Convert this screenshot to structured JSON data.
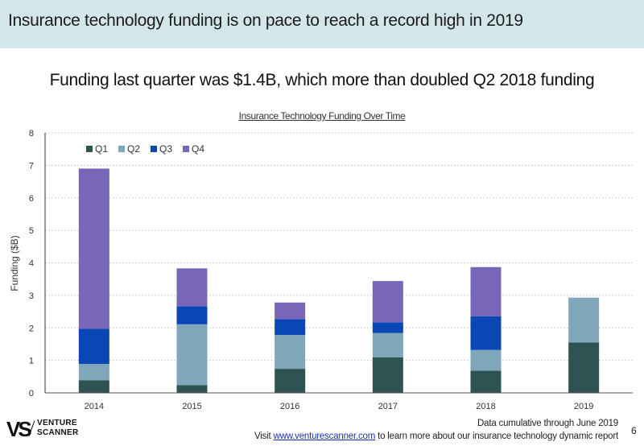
{
  "header": {
    "title": "Insurance technology funding is on pace to reach a record high in 2019"
  },
  "subtitle": "Funding last quarter was $1.4B, which more than doubled Q2 2018 funding",
  "footer": {
    "logo_mark": "VS",
    "logo_line1": "VENTURE",
    "logo_line2": "SCANNER",
    "note": "Data cumulative through June 2019",
    "visit_prefix": "Visit ",
    "visit_link": "www.venturescanner.com",
    "visit_suffix": " to learn more about our insurance technology dynamic report",
    "page_number": "6"
  },
  "chart_data": {
    "type": "bar",
    "stacked": true,
    "title": "Insurance Technology Funding Over Time",
    "xlabel": "",
    "ylabel": "Funding ($B)",
    "ylim": [
      0,
      8
    ],
    "yticks": [
      0,
      1,
      2,
      3,
      4,
      5,
      6,
      7,
      8
    ],
    "grid": true,
    "legend_position": "top-left",
    "categories": [
      "2014",
      "2015",
      "2016",
      "2017",
      "2018",
      "2019"
    ],
    "series": [
      {
        "name": "Q1",
        "color": "#2e5352",
        "values": [
          0.39,
          0.24,
          0.74,
          1.09,
          0.68,
          1.55
        ]
      },
      {
        "name": "Q2",
        "color": "#7fa6b9",
        "values": [
          0.5,
          1.87,
          1.04,
          0.75,
          0.64,
          1.38
        ]
      },
      {
        "name": "Q3",
        "color": "#0a47b5",
        "values": [
          1.08,
          0.55,
          0.49,
          0.33,
          1.04,
          0
        ]
      },
      {
        "name": "Q4",
        "color": "#7866b8",
        "values": [
          4.93,
          1.17,
          0.51,
          1.27,
          1.51,
          0
        ]
      }
    ]
  }
}
